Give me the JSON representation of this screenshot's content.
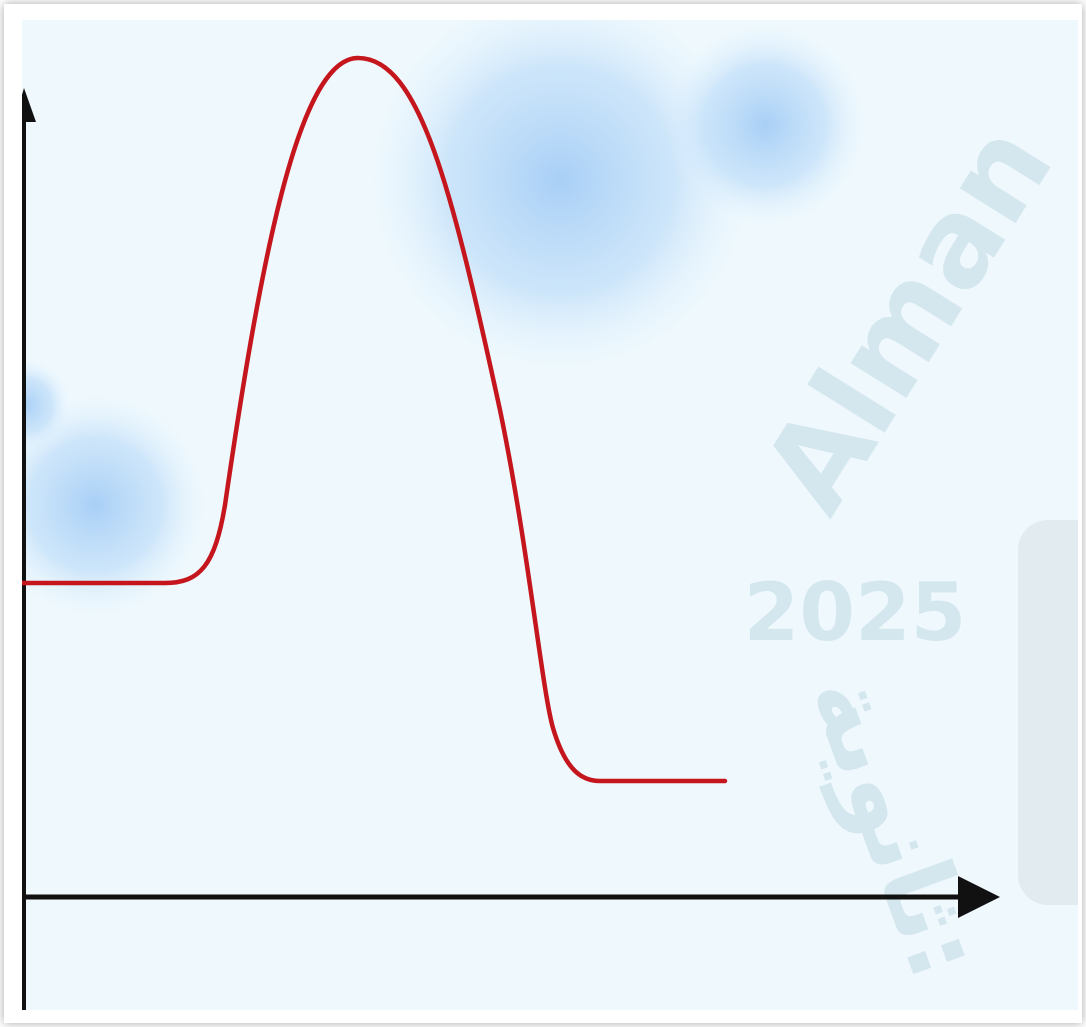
{
  "watermark": {
    "brand": "Alman",
    "year": "2025",
    "arabic": "ثانوية:"
  }
}
